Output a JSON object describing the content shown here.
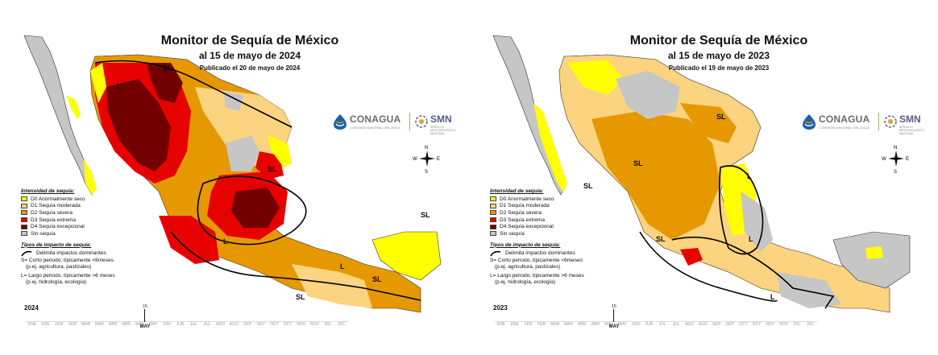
{
  "legend": {
    "intensity_header": "Intensidad de sequía:",
    "categories": [
      {
        "code": "D0",
        "label": "D0 Anormalmente seco",
        "color": "#ffff00"
      },
      {
        "code": "D1",
        "label": "D1 Sequía moderada",
        "color": "#fcd37f"
      },
      {
        "code": "D2",
        "label": "D2 Sequía severa",
        "color": "#e69800"
      },
      {
        "code": "D3",
        "label": "D3 Sequía extrema",
        "color": "#e60000"
      },
      {
        "code": "D4",
        "label": "D4 Sequía excepcional",
        "color": "#730000"
      },
      {
        "code": "none",
        "label": "Sin sequía",
        "color": "#c6c6c6"
      }
    ],
    "impact_header": "Tipos de impacto de sequía:",
    "impact_line": "Delimita impactos dominantes",
    "impact_s": "S= Corto periodo, típicamente <6meses",
    "impact_s_ex": "(p.ej. agricultura, pastizales)",
    "impact_l": "L= Largo periodo, típicamente >6 meses",
    "impact_l_ex": "(p.ej. hidrología, ecología)"
  },
  "logos": {
    "conagua": "CONAGUA",
    "conagua_sub": "COMISIÓN NACIONAL DEL AGUA",
    "smn": "SMN",
    "smn_sub": "SERVICIO METEOROLÓGICO NACIONAL"
  },
  "compass": {
    "n": "N",
    "s": "S",
    "e": "E",
    "w": "W"
  },
  "months": [
    "ENE",
    "ENE",
    "FEB",
    "FEB",
    "MAR",
    "MAR",
    "ABR",
    "ABR",
    "MAY",
    "MAY",
    "JUN",
    "JUN",
    "JUL",
    "JUL",
    "AGO",
    "AGO",
    "SEP",
    "SEP",
    "OCT",
    "OCT",
    "NOV",
    "NOV",
    "DIC",
    "DIC"
  ],
  "panels": [
    {
      "title": "Monitor de Sequía de México",
      "subtitle": "al 15 de mayo de 2024",
      "published": "Publicado el 20 de mayo de 2024",
      "year": "2024",
      "cursor_day": "15",
      "cursor_month": "MAY",
      "labels": [
        "SL",
        "L",
        "SL",
        "L",
        "SL",
        "SL",
        "SL",
        "L"
      ]
    },
    {
      "title": "Monitor de Sequía de México",
      "subtitle": "al 15 de mayo de 2023",
      "published": "Publicado el 19 de mayo de 2023",
      "year": "2023",
      "cursor_day": "15",
      "cursor_month": "MAY",
      "labels": [
        "SL",
        "SL",
        "SL",
        "SL",
        "L",
        "L",
        "L",
        "SL"
      ]
    }
  ]
}
